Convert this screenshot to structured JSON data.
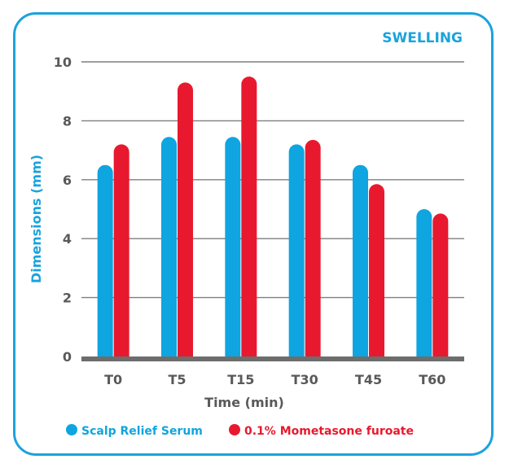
{
  "chart_data": {
    "type": "bar",
    "title": "SWELLING",
    "xlabel": "Time (min)",
    "ylabel": "Dimensions (mm)",
    "categories": [
      "T0",
      "T5",
      "T15",
      "T30",
      "T45",
      "T60"
    ],
    "ylim": [
      0,
      10
    ],
    "yticks": [
      "0",
      "2",
      "4",
      "6",
      "8",
      "10"
    ],
    "grid": true,
    "legend_position": "bottom",
    "series": [
      {
        "name": "Scalp Relief Serum",
        "color": "#0ea5e0",
        "values": [
          6.5,
          7.45,
          7.45,
          7.2,
          6.5,
          5.0
        ]
      },
      {
        "name": "0.1% Mometasone furoate",
        "color": "#e8192e",
        "values": [
          7.2,
          9.3,
          9.5,
          7.35,
          5.85,
          4.85
        ]
      }
    ]
  },
  "colors": {
    "frame": "#1ba3dc",
    "title": "#1ba3dc",
    "ylabel": "#1ba3dc",
    "text": "#595959",
    "grid": "#7f7f7f",
    "baseline": "#6d6d6d"
  }
}
